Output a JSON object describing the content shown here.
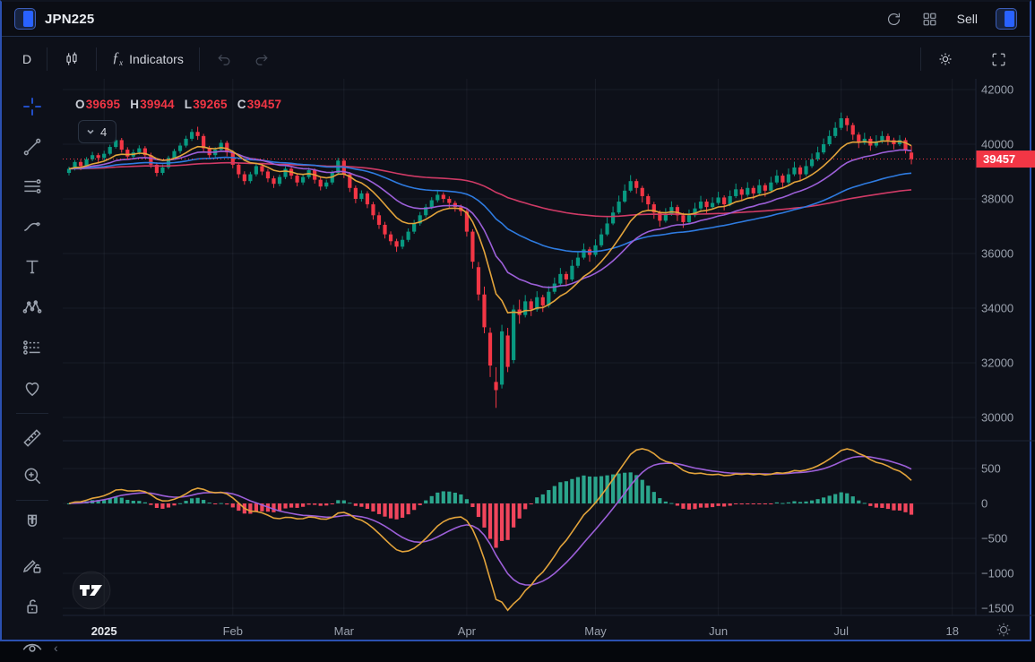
{
  "header": {
    "symbol": "JPN225",
    "sell_label": "Sell"
  },
  "header_icons": [
    "refresh-icon",
    "layout-grid-icon",
    "panel-toggle-icon"
  ],
  "toolbar": {
    "interval": "D",
    "indicators_label": "Indicators"
  },
  "toolbar_icons": [
    "candle-style-icon",
    "fx-icon",
    "undo-icon",
    "redo-icon",
    "settings-gear-icon",
    "fullscreen-icon"
  ],
  "sidebar_tools": [
    "crosshair",
    "trend-line",
    "fib-retracement",
    "brush",
    "text",
    "xabcd-pattern",
    "forecast",
    "favorites-heart",
    "measure-ruler",
    "zoom-in",
    "magnet",
    "drawing-lock",
    "lock-all",
    "hide-all"
  ],
  "legend": {
    "open_label": "O",
    "open": "39695",
    "high_label": "H",
    "high": "39944",
    "low_label": "L",
    "low": "39265",
    "close_label": "C",
    "close": "39457",
    "collapsed_count": "4"
  },
  "watermark": "TV",
  "chart_data": {
    "type": "candlestick",
    "symbol": "JPN225",
    "interval": "D",
    "year_start_label": "2025",
    "colors": {
      "up": "#089981",
      "down": "#f23645",
      "grid": "rgba(140,152,180,0.09)",
      "axis_text": "#9aa1ad",
      "price_line": "#f23645",
      "badge_bg": "#f23645",
      "badge_text": "#ffffff"
    },
    "price_axis": {
      "ticks": [
        42000,
        40000,
        38000,
        36000,
        34000,
        32000,
        30000
      ],
      "last_price": "39457"
    },
    "indicator_axis": {
      "ticks": [
        500,
        0,
        -500,
        -1000,
        -1500
      ]
    },
    "time_axis": {
      "ticks": [
        {
          "label": "2025",
          "index": 6,
          "bold": true
        },
        {
          "label": "Feb",
          "index": 28,
          "bold": false
        },
        {
          "label": "Mar",
          "index": 47,
          "bold": false
        },
        {
          "label": "Apr",
          "index": 68,
          "bold": false
        },
        {
          "label": "May",
          "index": 90,
          "bold": false
        },
        {
          "label": "Jun",
          "index": 111,
          "bold": false
        },
        {
          "label": "Jul",
          "index": 132,
          "bold": false
        },
        {
          "label": "18",
          "index": 151,
          "bold": false
        }
      ]
    },
    "overlays": [
      {
        "name": "EMA 10",
        "period": 10,
        "color": "#e2a33b"
      },
      {
        "name": "EMA 21",
        "period": 21,
        "color": "#9c5fd8"
      },
      {
        "name": "EMA 50",
        "period": 50,
        "color": "#2e7be0"
      },
      {
        "name": "EMA 120",
        "period": 120,
        "color": "#cf3a66"
      }
    ],
    "lower_indicator": {
      "name": "MACD",
      "fast": 12,
      "slow": 26,
      "signal_period": 9,
      "macd_color": "#e2a33b",
      "signal_color": "#9c5fd8",
      "hist_up": "#2ba58c",
      "hist_down": "#f0455c"
    },
    "candles": [
      [
        38950,
        39180,
        38860,
        39100
      ],
      [
        39100,
        39420,
        39040,
        39350
      ],
      [
        39350,
        39440,
        39050,
        39200
      ],
      [
        39200,
        39530,
        39120,
        39450
      ],
      [
        39450,
        39720,
        39380,
        39600
      ],
      [
        39600,
        39680,
        39330,
        39500
      ],
      [
        39500,
        39760,
        39410,
        39650
      ],
      [
        39650,
        39980,
        39590,
        39900
      ],
      [
        39900,
        40260,
        39840,
        40150
      ],
      [
        40150,
        40230,
        39690,
        39800
      ],
      [
        39800,
        39890,
        39430,
        39550
      ],
      [
        39550,
        39810,
        39480,
        39700
      ],
      [
        39700,
        39960,
        39620,
        39850
      ],
      [
        39850,
        39930,
        39480,
        39600
      ],
      [
        39600,
        39690,
        39130,
        39250
      ],
      [
        39250,
        39340,
        38820,
        38950
      ],
      [
        38950,
        39260,
        38870,
        39150
      ],
      [
        39150,
        39580,
        39080,
        39500
      ],
      [
        39500,
        39830,
        39430,
        39750
      ],
      [
        39750,
        40050,
        39660,
        39950
      ],
      [
        39950,
        40310,
        39880,
        40200
      ],
      [
        40200,
        40560,
        40120,
        40450
      ],
      [
        40450,
        40640,
        40160,
        40300
      ],
      [
        40300,
        40380,
        39720,
        39850
      ],
      [
        39850,
        39940,
        39470,
        39600
      ],
      [
        39600,
        39890,
        39520,
        39800
      ],
      [
        39800,
        40160,
        39730,
        40050
      ],
      [
        40050,
        40130,
        39560,
        39700
      ],
      [
        39700,
        39780,
        39120,
        39250
      ],
      [
        39250,
        39330,
        38760,
        38900
      ],
      [
        38900,
        39010,
        38520,
        38650
      ],
      [
        38650,
        38990,
        38570,
        38900
      ],
      [
        38900,
        39290,
        38820,
        39200
      ],
      [
        39200,
        39300,
        38870,
        39000
      ],
      [
        39000,
        39090,
        38610,
        38750
      ],
      [
        38750,
        38840,
        38400,
        38550
      ],
      [
        38550,
        38890,
        38460,
        38800
      ],
      [
        38800,
        39190,
        38720,
        39100
      ],
      [
        39100,
        39180,
        38720,
        38850
      ],
      [
        38850,
        38940,
        38460,
        38600
      ],
      [
        38600,
        38890,
        38510,
        38800
      ],
      [
        38800,
        39140,
        38730,
        39050
      ],
      [
        39050,
        39120,
        38560,
        38700
      ],
      [
        38700,
        38790,
        38310,
        38450
      ],
      [
        38450,
        38700,
        38360,
        38600
      ],
      [
        38600,
        39040,
        38520,
        38950
      ],
      [
        38950,
        39500,
        38870,
        39400
      ],
      [
        39400,
        39480,
        38760,
        38900
      ],
      [
        38900,
        38980,
        38250,
        38400
      ],
      [
        38400,
        38490,
        37840,
        38000
      ],
      [
        38000,
        38310,
        37900,
        38200
      ],
      [
        38200,
        38280,
        37660,
        37800
      ],
      [
        37800,
        37890,
        37240,
        37400
      ],
      [
        37400,
        37520,
        36900,
        37050
      ],
      [
        37050,
        37160,
        36550,
        36700
      ],
      [
        36700,
        36810,
        36310,
        36450
      ],
      [
        36450,
        36540,
        36060,
        36250
      ],
      [
        36250,
        36640,
        36160,
        36500
      ],
      [
        36500,
        36920,
        36420,
        36800
      ],
      [
        36800,
        37230,
        36720,
        37100
      ],
      [
        37100,
        37520,
        37020,
        37400
      ],
      [
        37400,
        37810,
        37320,
        37700
      ],
      [
        37700,
        38060,
        37620,
        37950
      ],
      [
        37950,
        38290,
        37870,
        38150
      ],
      [
        38150,
        38240,
        37860,
        38000
      ],
      [
        38000,
        38090,
        37680,
        37850
      ],
      [
        37850,
        37930,
        37530,
        37700
      ],
      [
        37700,
        37790,
        37380,
        37550
      ],
      [
        37550,
        37620,
        36620,
        36800
      ],
      [
        36800,
        36890,
        35450,
        35700
      ],
      [
        35500,
        35690,
        34280,
        34500
      ],
      [
        34500,
        34790,
        33080,
        33300
      ],
      [
        33100,
        33290,
        31480,
        31900
      ],
      [
        31300,
        31840,
        30350,
        31000
      ],
      [
        31200,
        33390,
        31060,
        33150
      ],
      [
        33000,
        33280,
        31660,
        31850
      ],
      [
        32100,
        34120,
        31980,
        33950
      ],
      [
        33950,
        34310,
        33430,
        33750
      ],
      [
        33750,
        34480,
        33660,
        34250
      ],
      [
        34250,
        34340,
        33710,
        33950
      ],
      [
        33950,
        34620,
        33870,
        34400
      ],
      [
        34400,
        34490,
        33860,
        34100
      ],
      [
        34100,
        34810,
        34020,
        34600
      ],
      [
        34600,
        35120,
        34520,
        34900
      ],
      [
        34900,
        35470,
        34830,
        35250
      ],
      [
        35250,
        35340,
        34800,
        35050
      ],
      [
        35050,
        35770,
        34980,
        35550
      ],
      [
        35550,
        36070,
        35470,
        35850
      ],
      [
        35850,
        36370,
        35780,
        36150
      ],
      [
        36150,
        36240,
        35700,
        35950
      ],
      [
        35950,
        36520,
        35880,
        36300
      ],
      [
        36300,
        36910,
        36230,
        36700
      ],
      [
        36700,
        37320,
        36640,
        37100
      ],
      [
        37100,
        37720,
        37040,
        37500
      ],
      [
        37500,
        38120,
        37440,
        37900
      ],
      [
        37900,
        38530,
        37850,
        38300
      ],
      [
        38300,
        38870,
        38240,
        38650
      ],
      [
        38650,
        38730,
        38190,
        38400
      ],
      [
        38400,
        38480,
        37870,
        38100
      ],
      [
        38100,
        38180,
        37570,
        37800
      ],
      [
        37800,
        37890,
        37270,
        37500
      ],
      [
        37500,
        37580,
        36980,
        37200
      ],
      [
        37200,
        37660,
        37130,
        37450
      ],
      [
        37450,
        37910,
        37380,
        37700
      ],
      [
        37700,
        37780,
        37190,
        37400
      ],
      [
        37400,
        37490,
        36940,
        37150
      ],
      [
        37150,
        37610,
        37080,
        37400
      ],
      [
        37400,
        37860,
        37330,
        37650
      ],
      [
        37650,
        38110,
        37580,
        37900
      ],
      [
        37900,
        37990,
        37480,
        37700
      ],
      [
        37700,
        38060,
        37630,
        37850
      ],
      [
        37850,
        38260,
        37780,
        38050
      ],
      [
        38050,
        38130,
        37580,
        37800
      ],
      [
        37800,
        38310,
        37730,
        38100
      ],
      [
        38100,
        38560,
        38030,
        38350
      ],
      [
        38350,
        38430,
        37930,
        38150
      ],
      [
        38150,
        38610,
        38080,
        38400
      ],
      [
        38400,
        38480,
        37980,
        38200
      ],
      [
        38200,
        38710,
        38130,
        38500
      ],
      [
        38500,
        38580,
        38080,
        38300
      ],
      [
        38300,
        38810,
        38230,
        38600
      ],
      [
        38600,
        39060,
        38530,
        38850
      ],
      [
        38850,
        38930,
        38380,
        38600
      ],
      [
        38600,
        39110,
        38530,
        38900
      ],
      [
        38900,
        39360,
        38830,
        39150
      ],
      [
        39150,
        39230,
        38680,
        38900
      ],
      [
        38900,
        39410,
        38830,
        39200
      ],
      [
        39200,
        39660,
        39130,
        39450
      ],
      [
        39450,
        39910,
        39380,
        39700
      ],
      [
        39700,
        40210,
        39630,
        40000
      ],
      [
        40000,
        40510,
        39930,
        40300
      ],
      [
        40300,
        40810,
        40230,
        40600
      ],
      [
        40600,
        41160,
        40520,
        40950
      ],
      [
        40950,
        41040,
        40480,
        40700
      ],
      [
        40700,
        40790,
        40160,
        40350
      ],
      [
        40350,
        40440,
        39860,
        40050
      ],
      [
        40050,
        40420,
        39980,
        40200
      ],
      [
        40200,
        40290,
        39760,
        39950
      ],
      [
        39950,
        40330,
        39880,
        40100
      ],
      [
        40100,
        40480,
        40030,
        40300
      ],
      [
        40300,
        40390,
        39960,
        40150
      ],
      [
        40150,
        40240,
        39810,
        40000
      ],
      [
        40000,
        40330,
        39930,
        40150
      ],
      [
        40150,
        40240,
        39660,
        39800
      ],
      [
        39695,
        39944,
        39265,
        39457
      ]
    ]
  }
}
